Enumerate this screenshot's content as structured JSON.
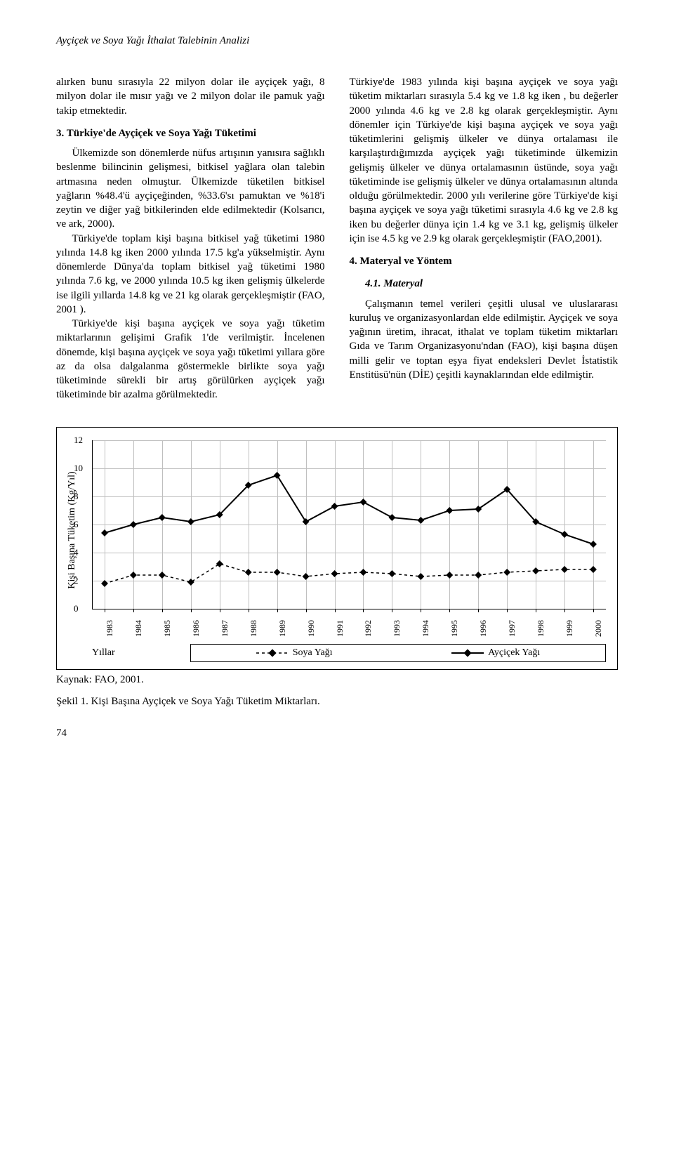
{
  "running_title": "Ayçiçek ve Soya Yağı İthalat Talebinin Analizi",
  "left_col": {
    "p1": "alırken bunu sırasıyla 22 milyon dolar ile ayçiçek yağı, 8 milyon dolar ile mısır yağı ve 2 milyon dolar ile pamuk yağı takip etmektedir.",
    "sec3_title": "3. Türkiye'de Ayçiçek ve Soya Yağı Tüketimi",
    "p2": "Ülkemizde son dönemlerde nüfus artışının yanısıra sağlıklı beslenme bilincinin gelişmesi, bitkisel yağlara olan talebin artmasına neden olmuştur. Ülkemizde tüketilen bitkisel yağların %48.4'ü ayçiçeğinden, %33.6'sı pamuktan ve %18'i zeytin ve diğer yağ bitkilerinden elde edilmektedir (Kolsarıcı, ve ark, 2000).",
    "p3": "Türkiye'de toplam kişi başına bitkisel yağ tüketimi 1980 yılında 14.8 kg iken 2000 yılında 17.5 kg'a yükselmiştir. Aynı dönemlerde Dünya'da toplam bitkisel yağ tüketimi 1980 yılında 7.6 kg, ve 2000 yılında 10.5 kg iken gelişmiş ülkelerde ise ilgili yıllarda 14.8 kg ve 21 kg olarak gerçekleşmiştir (FAO, 2001 ).",
    "p4": "Türkiye'de kişi başına ayçiçek ve soya yağı tüketim miktarlarının gelişimi Grafik 1'de verilmiştir. İncelenen dönemde, kişi başına ayçiçek ve soya yağı tüketimi yıllara göre az da olsa dalgalanma göstermekle birlikte soya yağı tüketiminde sürekli bir artış görülürken ayçiçek yağı tüketiminde bir azalma görülmektedir."
  },
  "right_col": {
    "p1": "Türkiye'de 1983 yılında kişi başına ayçiçek ve soya yağı tüketim miktarları sırasıyla 5.4 kg ve 1.8 kg iken , bu değerler 2000 yılında 4.6 kg ve 2.8 kg olarak gerçekleşmiştir. Aynı dönemler için Türkiye'de kişi başına ayçiçek ve soya yağı tüketimlerini gelişmiş ülkeler ve dünya ortalaması ile karşılaştırdığımızda ayçiçek yağı tüketiminde ülkemizin gelişmiş ülkeler ve dünya ortalamasının üstünde, soya yağı tüketiminde ise gelişmiş ülkeler ve dünya ortalamasının altında olduğu görülmektedir. 2000 yılı verilerine göre Türkiye'de kişi başına ayçiçek ve soya yağı tüketimi sırasıyla 4.6 kg ve 2.8 kg iken bu değerler dünya için 1.4 kg ve 3.1 kg, gelişmiş ülkeler için ise 4.5 kg ve 2.9 kg olarak gerçekleşmiştir (FAO,2001).",
    "sec4_title": "4. Materyal ve Yöntem",
    "sub41_title": "4.1. Materyal",
    "p2": "Çalışmanın temel verileri çeşitli ulusal ve uluslararası kuruluş ve organizasyonlardan elde edilmiştir. Ayçiçek ve soya yağının üretim, ihracat, ithalat ve toplam tüketim miktarları Gıda ve Tarım Organizasyonu'ndan (FAO), kişi başına düşen milli gelir ve toptan eşya fiyat endeksleri Devlet İstatistik Enstitüsü'nün (DİE) çeşitli kaynaklarından elde edilmiştir."
  },
  "chart": {
    "type": "line",
    "y_axis_label": "Kişi Başına Tüketim (Kg/Yıl)",
    "ylim": [
      0,
      12
    ],
    "y_ticks": [
      0,
      2,
      4,
      6,
      8,
      10,
      12
    ],
    "years": [
      1983,
      1984,
      1985,
      1986,
      1987,
      1988,
      1989,
      1990,
      1991,
      1992,
      1993,
      1994,
      1995,
      1996,
      1997,
      1998,
      1999,
      2000
    ],
    "series": {
      "soya": {
        "label": "Soya Yağı",
        "values": [
          1.8,
          2.4,
          2.4,
          1.9,
          3.2,
          2.6,
          2.6,
          2.3,
          2.5,
          2.6,
          2.5,
          2.3,
          2.4,
          2.4,
          2.6,
          2.7,
          2.8,
          2.8
        ],
        "marker": "diamond",
        "dash": "4,4",
        "color": "#000000",
        "line_width": 1.5
      },
      "aycicek": {
        "label": "Ayçiçek Yağı",
        "values": [
          5.4,
          6.0,
          6.5,
          6.2,
          6.7,
          8.8,
          9.5,
          6.2,
          7.3,
          7.6,
          6.5,
          6.3,
          7.0,
          7.1,
          8.5,
          6.2,
          5.3,
          4.6
        ],
        "marker": "diamond",
        "dash": "none",
        "color": "#000000",
        "line_width": 2
      }
    },
    "x_axis_label": "Yıllar",
    "grid_color": "#bfbfbf",
    "background": "#ffffff",
    "border": "#000000",
    "marker_fill": "#000000"
  },
  "source": "Kaynak: FAO, 2001.",
  "figure_caption": "Şekil 1. Kişi Başına Ayçiçek ve Soya Yağı Tüketim Miktarları.",
  "page_number": "74"
}
